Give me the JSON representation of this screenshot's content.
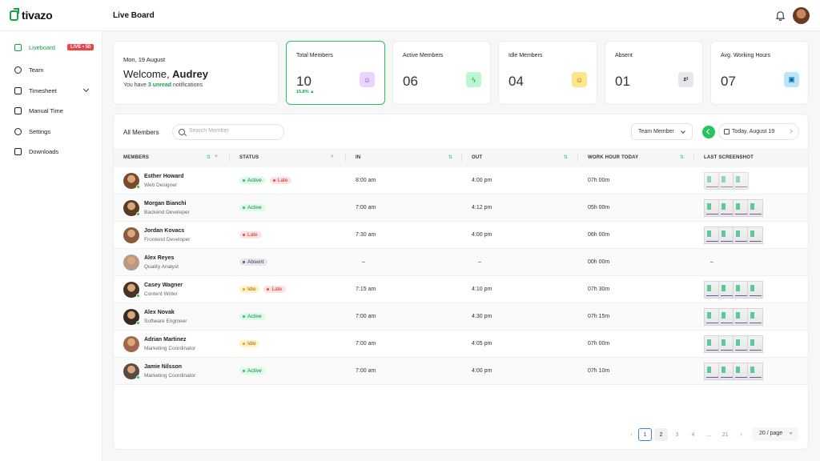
{
  "brand": "tivazo",
  "header": {
    "title": "Live Board",
    "bell_icon": "bell-icon",
    "avatar": "user-avatar"
  },
  "sidebar": {
    "items": [
      {
        "label": "Liveboard",
        "icon": "video-icon",
        "badge": "LIVE • 50",
        "active": true
      },
      {
        "label": "Team",
        "icon": "user-circle-icon"
      },
      {
        "label": "Timesheet",
        "icon": "calendar-icon",
        "has_chevron": true
      },
      {
        "label": "Manual Time",
        "icon": "clock-edit-icon"
      },
      {
        "label": "Settings",
        "icon": "gear-icon"
      },
      {
        "label": "Downloads",
        "icon": "download-icon"
      }
    ]
  },
  "welcome": {
    "date": "Mon, 19 August",
    "greeting": "Welcome, ",
    "name": "Audrey",
    "sub_prefix": "You have ",
    "sub_highlight": "3 unread",
    "sub_suffix": " notifications"
  },
  "stats": [
    {
      "label": "Total Members",
      "value": "10",
      "delta": "15.8% ▲",
      "icon": "users-icon",
      "icon_bg": "#e9d5ff",
      "icon_color": "#7c3aed",
      "selected": true
    },
    {
      "label": "Active Members",
      "value": "06",
      "icon": "bolt-icon",
      "icon_bg": "#bbf7d0",
      "icon_color": "#16a34a"
    },
    {
      "label": "Idle Members",
      "value": "04",
      "icon": "smile-icon",
      "icon_bg": "#fde68a",
      "icon_color": "#b45309"
    },
    {
      "label": "Absent",
      "value": "01",
      "icon": "sleep-icon",
      "icon_bg": "#e5e7eb",
      "icon_color": "#111"
    },
    {
      "label": "Avg. Working Hours",
      "value": "07",
      "icon": "briefcase-icon",
      "icon_bg": "#bae6fd",
      "icon_color": "#0369a1"
    }
  ],
  "table": {
    "title": "All Members",
    "search_placeholder": "Search Member",
    "filter_label": "Team Member",
    "date_label": "Today, August 19",
    "columns": [
      "MEMBERS",
      "STATUS",
      "IN",
      "OUT",
      "WORK HOUR TODAY",
      "LAST SCREENSHOT"
    ],
    "rows": [
      {
        "name": "Esther Howard",
        "role": "Web Designer",
        "status": [
          "Active",
          "Late"
        ],
        "in": "8:00 am",
        "out": "4:00 pm",
        "hours": "07h 00m",
        "shot": "partial",
        "dot": "#22c55e"
      },
      {
        "name": "Morgan Bianchi",
        "role": "Backend Developer",
        "status": [
          "Active"
        ],
        "in": "7:00 am",
        "out": "4:12 pm",
        "hours": "05h 00m",
        "shot": "full",
        "dot": "#22c55e"
      },
      {
        "name": "Jordan Kovacs",
        "role": "Frontend Developer",
        "status": [
          "Late"
        ],
        "in": "7:30 am",
        "out": "4:00 pm",
        "hours": "06h 00m",
        "shot": "full",
        "dot": ""
      },
      {
        "name": "Alex Reyes",
        "role": "Quality Analyst",
        "status": [
          "Absent"
        ],
        "in": "–",
        "out": "–",
        "hours": "00h 00m",
        "shot": "none",
        "dot": ""
      },
      {
        "name": "Casey Wagner",
        "role": "Content Writer",
        "status": [
          "Idle",
          "Late"
        ],
        "in": "7:15 am",
        "out": "4:10 pm",
        "hours": "07h 30m",
        "shot": "full",
        "dot": "#22c55e"
      },
      {
        "name": "Alex Novak",
        "role": "Software Engineer",
        "status": [
          "Active"
        ],
        "in": "7:00 am",
        "out": "4:30 pm",
        "hours": "07h 15m",
        "shot": "full",
        "dot": "#22c55e"
      },
      {
        "name": "Adrian Martinez",
        "role": "Marketing Coordinator",
        "status": [
          "Idle"
        ],
        "in": "7:00 am",
        "out": "4:05 pm",
        "hours": "07h 00m",
        "shot": "full",
        "dot": ""
      },
      {
        "name": "Jamie Nilsson",
        "role": "Marketing Coordinator",
        "status": [
          "Active"
        ],
        "in": "7:00 am",
        "out": "4:00 pm",
        "hours": "07h 10m",
        "shot": "full",
        "dot": "#22c55e"
      }
    ],
    "empty_dash": "–"
  },
  "pagination": {
    "pages": [
      "1",
      "2",
      "3",
      "4",
      "...",
      "21"
    ],
    "current": "1",
    "per_page": "20 / page",
    "prev": "‹",
    "next": "›"
  },
  "status_colors": {
    "Active": {
      "bg": "#dcfce7",
      "fg": "#15803d",
      "dot": "#22c55e"
    },
    "Late": {
      "bg": "#fee2e2",
      "fg": "#dc2626",
      "dot": "#ef4444"
    },
    "Idle": {
      "bg": "#fef3c7",
      "fg": "#b45309",
      "dot": "#f59e0b"
    },
    "Absent": {
      "bg": "#e5e7eb",
      "fg": "#374151",
      "dot": "#4b5563"
    }
  }
}
